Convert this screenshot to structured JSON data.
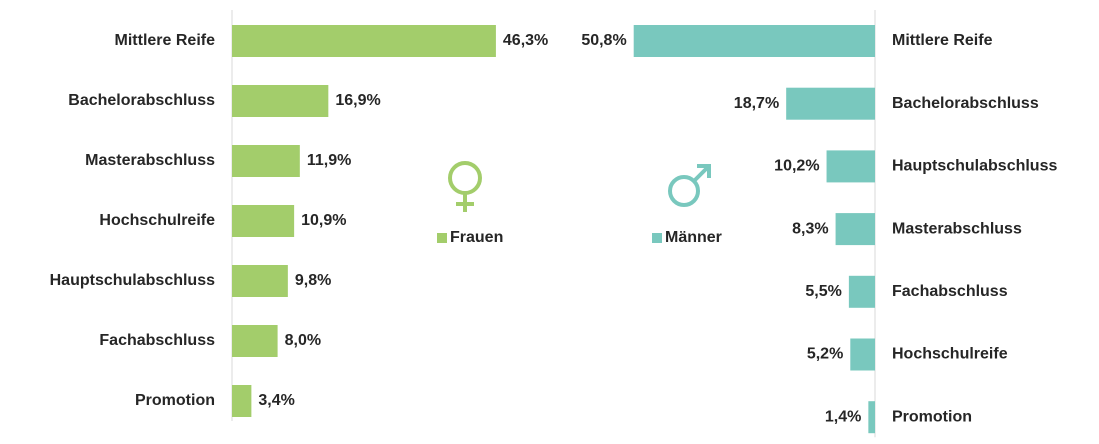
{
  "chart_data": [
    {
      "type": "bar",
      "orientation": "horizontal",
      "x_reversed": false,
      "categories": [
        "Mittlere Reife",
        "Bachelorabschluss",
        "Masterabschluss",
        "Hochschulreife",
        "Hauptschulabschluss",
        "Fachabschluss",
        "Promotion"
      ],
      "series": [
        {
          "name": "Frauen",
          "color": "#a3cd6b",
          "values": [
            46.3,
            16.9,
            11.9,
            10.9,
            9.8,
            8.0,
            3.4
          ],
          "value_labels": [
            "46,3%",
            "16,9%",
            "11,9%",
            "10,9%",
            "9,8%",
            "8,0%",
            "3,4%"
          ]
        }
      ],
      "xlim": [
        0,
        50
      ]
    },
    {
      "type": "bar",
      "orientation": "horizontal",
      "x_reversed": true,
      "categories": [
        "Mittlere Reife",
        "Bachelorabschluss",
        "Hauptschulabschluss",
        "Masterabschluss",
        "Fachabschluss",
        "Hochschulreife",
        "Promotion"
      ],
      "series": [
        {
          "name": "Männer",
          "color": "#79c8be",
          "values": [
            50.8,
            18.7,
            10.2,
            8.3,
            5.5,
            5.2,
            1.4
          ],
          "value_labels": [
            "50,8%",
            "18,7%",
            "10,2%",
            "8,3%",
            "5,5%",
            "5,2%",
            "1,4%"
          ]
        }
      ],
      "xlim": [
        0,
        60
      ]
    }
  ]
}
